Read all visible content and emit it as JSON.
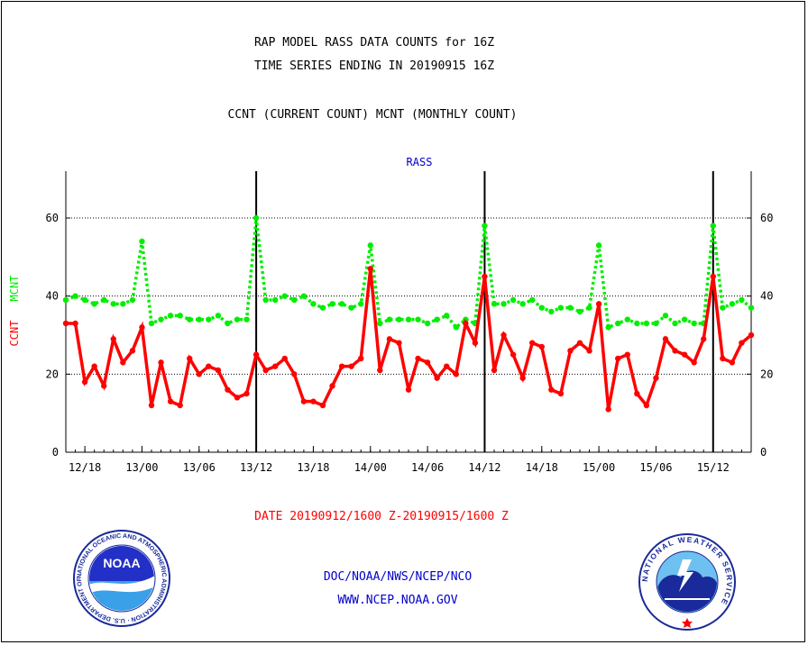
{
  "header": {
    "title_line1": "RAP MODEL RASS DATA COUNTS for 16Z",
    "title_line2": "TIME SERIES ENDING IN 20190915 16Z",
    "subtitle": "CCNT (CURRENT COUNT) MCNT (MONTHLY COUNT)"
  },
  "footer": {
    "date_range": "DATE 20190912/1600 Z-20190915/1600 Z",
    "org_line": "DOC/NOAA/NWS/NCEP/NCO",
    "url_line": "WWW.NCEP.NOAA.GOV"
  },
  "logos": {
    "noaa_text": "NOAA",
    "noaa_ring_text": "NATIONAL OCEANIC AND ATMOSPHERIC ADMINISTRATION · U.S. DEPARTMENT OF COMMERCE",
    "nws_ring_text": "NATIONAL WEATHER SERVICE"
  },
  "colors": {
    "ccnt": "#ff0000",
    "mcnt": "#00ee00",
    "label_blue": "#0000cc",
    "date_red": "#ff0000"
  },
  "chart_data": {
    "type": "line",
    "title": "RASS",
    "ylabel_ccnt": "CCNT",
    "ylabel_mcnt": "MCNT",
    "ylim": [
      0,
      72
    ],
    "yticks": [
      0,
      20,
      40,
      60
    ],
    "grid_y": [
      20,
      40,
      60
    ],
    "x_start_hours": 0,
    "x_end_hours": 72,
    "x_tick_labels": [
      "12/18",
      "13/00",
      "13/06",
      "13/12",
      "13/18",
      "14/00",
      "14/06",
      "14/12",
      "14/18",
      "15/00",
      "15/06",
      "15/12"
    ],
    "x_tick_hours": [
      2,
      8,
      14,
      20,
      26,
      32,
      38,
      44,
      50,
      56,
      62,
      68
    ],
    "day_boundaries_hours": [
      20,
      44,
      68
    ],
    "series": [
      {
        "name": "CCNT",
        "style": "solid",
        "values": [
          33,
          33,
          18,
          22,
          17,
          29,
          23,
          26,
          32,
          12,
          23,
          13,
          12,
          24,
          20,
          22,
          21,
          16,
          14,
          15,
          25,
          21,
          22,
          24,
          20,
          13,
          13,
          12,
          17,
          22,
          22,
          24,
          47,
          21,
          29,
          28,
          16,
          24,
          23,
          19,
          22,
          20,
          33,
          28,
          45,
          21,
          30,
          25,
          19,
          28,
          27,
          16,
          15,
          26,
          28,
          26,
          38,
          11,
          24,
          25,
          15,
          12,
          19,
          29,
          26,
          25,
          23,
          29,
          45,
          24,
          23,
          28,
          30
        ]
      },
      {
        "name": "MCNT",
        "style": "dotted",
        "values": [
          39,
          40,
          39,
          38,
          39,
          38,
          38,
          39,
          54,
          33,
          34,
          35,
          35,
          34,
          34,
          34,
          35,
          33,
          34,
          34,
          60,
          39,
          39,
          40,
          39,
          40,
          38,
          37,
          38,
          38,
          37,
          38,
          53,
          33,
          34,
          34,
          34,
          34,
          33,
          34,
          35,
          32,
          34,
          33,
          58,
          38,
          38,
          39,
          38,
          39,
          37,
          36,
          37,
          37,
          36,
          37,
          53,
          32,
          33,
          34,
          33,
          33,
          33,
          35,
          33,
          34,
          33,
          33,
          58,
          37,
          38,
          39,
          37
        ]
      }
    ]
  }
}
